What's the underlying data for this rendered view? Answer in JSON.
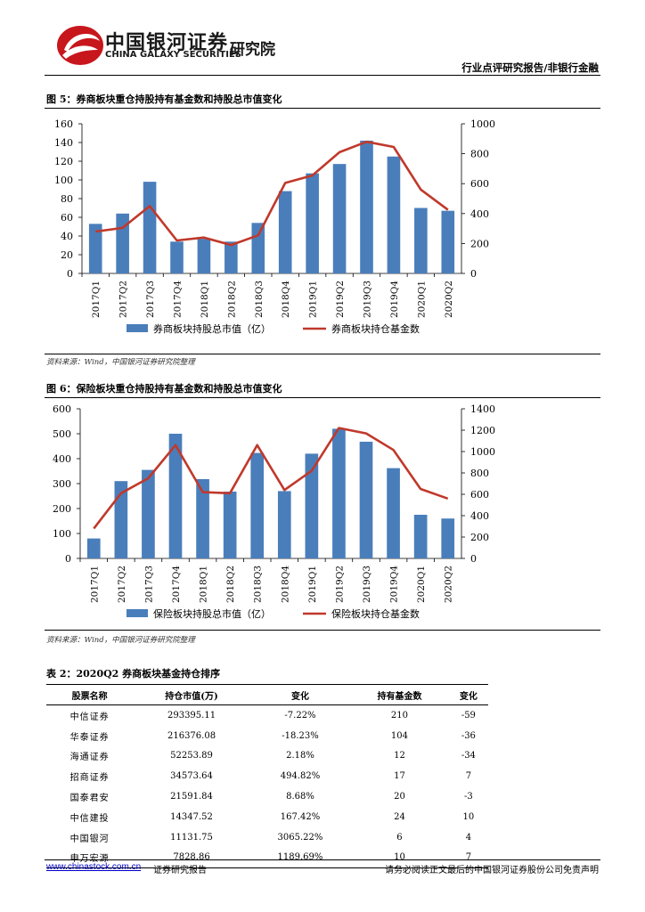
{
  "header": {
    "logo_cn": "中国银河证券",
    "logo_en": "CHINA GALAXY SECURITIES",
    "logo_inst": "研究院",
    "report_type": "行业点评研究报告/非银行金融"
  },
  "fig5": {
    "title": "图 5：券商板块重仓持股持有基金数和持股总市值变化",
    "source": "资料来源：Wind，中国银河证券研究院整理"
  },
  "fig6": {
    "title": "图 6：保险板块重仓持股持有基金数和持股总市值变化",
    "source": "资料来源：Wind，中国银河证券研究院整理"
  },
  "chart_data": [
    {
      "type": "bar+line",
      "categories": [
        "2017Q1",
        "2017Q2",
        "2017Q3",
        "2017Q4",
        "2018Q1",
        "2018Q2",
        "2018Q3",
        "2018Q4",
        "2019Q1",
        "2019Q2",
        "2019Q3",
        "2019Q4",
        "2020Q1",
        "2020Q2"
      ],
      "series": [
        {
          "name": "券商板块持股总市值（亿）",
          "type": "bar",
          "axis": "left",
          "color": "#4a7ebb",
          "values": [
            53,
            64,
            98,
            34,
            37,
            34,
            54,
            88,
            107,
            117,
            142,
            125,
            70,
            67
          ]
        },
        {
          "name": "券商板块持仓基金数",
          "type": "line",
          "axis": "right",
          "color": "#c0392b",
          "values": [
            280,
            305,
            450,
            220,
            240,
            190,
            255,
            605,
            655,
            810,
            880,
            845,
            560,
            425
          ]
        }
      ],
      "ylim_left": [
        0,
        160
      ],
      "yticks_left": [
        0,
        20,
        40,
        60,
        80,
        100,
        120,
        140,
        160
      ],
      "ylim_right": [
        0,
        1000
      ],
      "yticks_right": [
        0,
        200,
        400,
        600,
        800,
        1000
      ],
      "grid": false,
      "legend": "bottom"
    },
    {
      "type": "bar+line",
      "categories": [
        "2017Q1",
        "2017Q2",
        "2017Q3",
        "2017Q4",
        "2018Q1",
        "2018Q2",
        "2018Q3",
        "2018Q4",
        "2019Q1",
        "2019Q2",
        "2019Q3",
        "2019Q4",
        "2020Q1",
        "2020Q2"
      ],
      "series": [
        {
          "name": "保险板块持股总市值（亿）",
          "type": "bar",
          "axis": "left",
          "color": "#4a7ebb",
          "values": [
            80,
            310,
            355,
            500,
            318,
            268,
            423,
            270,
            420,
            520,
            468,
            362,
            175,
            160
          ]
        },
        {
          "name": "保险板块持仓基金数",
          "type": "line",
          "axis": "right",
          "color": "#c0392b",
          "values": [
            280,
            610,
            750,
            1060,
            620,
            610,
            1060,
            640,
            820,
            1220,
            1170,
            1015,
            650,
            560
          ]
        }
      ],
      "ylim_left": [
        0,
        600
      ],
      "yticks_left": [
        0,
        100,
        200,
        300,
        400,
        500,
        600
      ],
      "ylim_right": [
        0,
        1400
      ],
      "yticks_right": [
        0,
        200,
        400,
        600,
        800,
        1000,
        1200,
        1400
      ],
      "grid": false,
      "legend": "bottom"
    }
  ],
  "table2": {
    "title": "表 2：2020Q2 券商板块基金持仓排序",
    "headers": [
      "股票名称",
      "持仓市值(万)",
      "变化",
      "持有基金数",
      "变化"
    ],
    "rows": [
      [
        "中信证券",
        "293395.11",
        "-7.22%",
        "210",
        "-59"
      ],
      [
        "华泰证券",
        "216376.08",
        "-18.23%",
        "104",
        "-36"
      ],
      [
        "海通证券",
        "52253.89",
        "2.18%",
        "12",
        "-34"
      ],
      [
        "招商证券",
        "34573.64",
        "494.82%",
        "17",
        "7"
      ],
      [
        "国泰君安",
        "21591.84",
        "8.68%",
        "20",
        "-3"
      ],
      [
        "中信建投",
        "14347.52",
        "167.42%",
        "24",
        "10"
      ],
      [
        "中国银河",
        "11131.75",
        "3065.22%",
        "6",
        "4"
      ],
      [
        "申万宏源",
        "7828.86",
        "1189.69%",
        "10",
        "7"
      ]
    ]
  },
  "footer": {
    "link": "www.chinastock.com.cn",
    "tag": "证券研究报告",
    "disclaimer": "请务必阅读正文最后的中国银河证券股份公司免责声明"
  }
}
